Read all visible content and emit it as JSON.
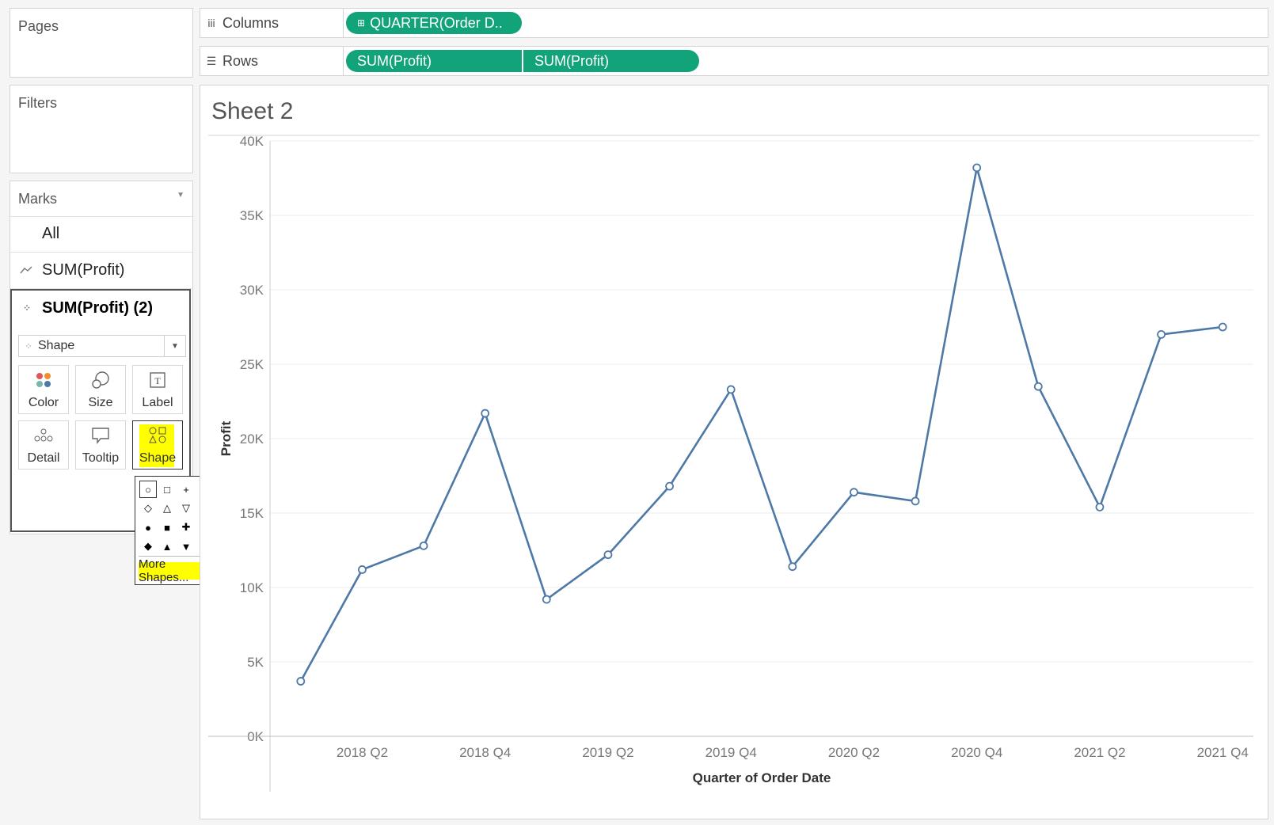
{
  "left": {
    "pages_label": "Pages",
    "filters_label": "Filters",
    "marks": {
      "title": "Marks",
      "dropdown_icon": "caret-down-icon",
      "rows": [
        {
          "label": "All",
          "icon": ""
        },
        {
          "label": "SUM(Profit)",
          "icon": "line-mark-icon"
        },
        {
          "label": "SUM(Profit) (2)",
          "icon": "shape-mark-icon"
        }
      ],
      "mark_type": "Shape",
      "buttons": {
        "color": "Color",
        "size": "Size",
        "label": "Label",
        "detail": "Detail",
        "tooltip": "Tooltip",
        "shape": "Shape"
      },
      "highlight_color": "#ffff00"
    },
    "shape_palette": {
      "shapes": [
        "○",
        "□",
        "+",
        "×",
        "✱",
        "◇",
        "△",
        "▽",
        "◁",
        "▷",
        "●",
        "■",
        "✚",
        "✖",
        "★",
        "◆",
        "▲",
        "▼",
        "◀",
        "▶"
      ],
      "more_label": "More Shapes..."
    }
  },
  "shelves": {
    "columns_label": "Columns",
    "rows_label": "Rows",
    "columns_pills": [
      "QUARTER(Order D.."
    ],
    "rows_pills": [
      "SUM(Profit)",
      "SUM(Profit)"
    ],
    "pill_color": "#12a37a"
  },
  "sheet": {
    "title": "Sheet 2"
  },
  "chart_data": {
    "type": "line",
    "title": "Sheet 2",
    "xlabel": "Quarter of Order Date",
    "ylabel": "Profit",
    "x": [
      "2018 Q1",
      "2018 Q2",
      "2018 Q3",
      "2018 Q4",
      "2019 Q1",
      "2019 Q2",
      "2019 Q3",
      "2019 Q4",
      "2020 Q1",
      "2020 Q2",
      "2020 Q3",
      "2020 Q4",
      "2021 Q1",
      "2021 Q2",
      "2021 Q3",
      "2021 Q4"
    ],
    "x_tick_labels": [
      "2018 Q2",
      "2018 Q4",
      "2019 Q2",
      "2019 Q4",
      "2020 Q2",
      "2020 Q4",
      "2021 Q2",
      "2021 Q4"
    ],
    "y_ticks": [
      "0K",
      "5K",
      "10K",
      "15K",
      "20K",
      "25K",
      "30K",
      "35K",
      "40K"
    ],
    "ylim": [
      0,
      40000
    ],
    "series": [
      {
        "values": [
          3700,
          11200,
          12800,
          21700,
          9200,
          12200,
          16800,
          23300,
          11400,
          16400,
          15800,
          38200,
          23500,
          15400,
          27000,
          27500
        ]
      }
    ],
    "line_color": "#4e79a7",
    "marker": "circle-open",
    "grid": "horizontal"
  }
}
